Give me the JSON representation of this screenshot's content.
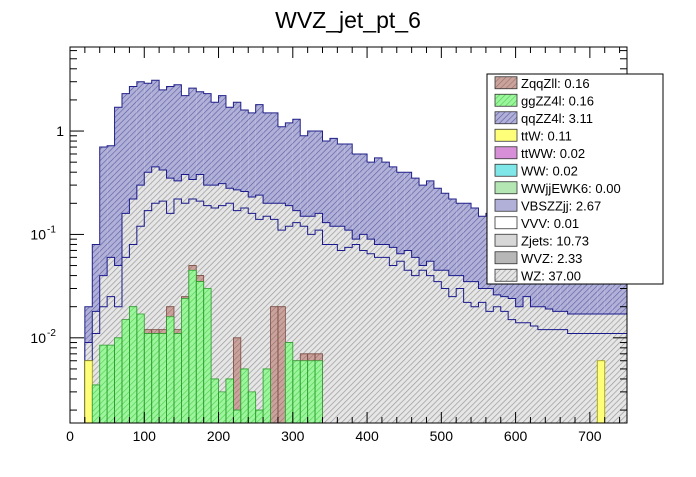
{
  "chart_data": {
    "type": "bar",
    "stacked": true,
    "title": "WVZ_jet_pt_6",
    "xlabel": "",
    "ylabel": "",
    "xlim": [
      0,
      750
    ],
    "ylim": [
      0.0015,
      6.5
    ],
    "yscale": "log",
    "bin_width": 10,
    "x_ticks": [
      0,
      100,
      200,
      300,
      400,
      500,
      600,
      700
    ],
    "y_ticks": [
      {
        "value": 0.01,
        "label": "10",
        "exp": "-2"
      },
      {
        "value": 0.1,
        "label": "10",
        "exp": "-1"
      },
      {
        "value": 1,
        "label": "1",
        "exp": ""
      }
    ],
    "grid": false,
    "legend_position": "top-right",
    "legend": [
      {
        "label": "ZqqZll: 0.16",
        "color": "#c49a94",
        "hatch": "diag"
      },
      {
        "label": "ggZZ4l: 0.16",
        "color": "#8fe98f",
        "hatch": "diag"
      },
      {
        "label": "qqZZ4l: 3.11",
        "color": "#9999cc",
        "hatch": "diag"
      },
      {
        "label": "ttW: 0.11",
        "color": "#ffff7a",
        "hatch": "none"
      },
      {
        "label": "ttWW: 0.02",
        "color": "#d78fd7",
        "hatch": "none"
      },
      {
        "label": "WW: 0.02",
        "color": "#7fe7e7",
        "hatch": "none"
      },
      {
        "label": "WWjjEWK6: 0.00",
        "color": "#b3e6b3",
        "hatch": "none"
      },
      {
        "label": "VBSZZjj: 2.67",
        "color": "#b0b0d8",
        "hatch": "none"
      },
      {
        "label": "VVV: 0.01",
        "color": "#ffffff",
        "hatch": "none"
      },
      {
        "label": "Zjets: 10.73",
        "color": "#d7d7d7",
        "hatch": "none"
      },
      {
        "label": "WVZ: 2.33",
        "color": "#b7b7b7",
        "hatch": "none"
      },
      {
        "label": "WZ: 37.00",
        "color": "#a9a9a9",
        "hatch": "diag"
      }
    ],
    "series": [
      {
        "name": "ggZZ4l+qqZZ4l (cumulative)",
        "x": [
          20,
          30,
          40,
          50,
          60,
          70,
          80,
          90,
          100,
          110,
          120,
          130,
          140,
          150,
          160,
          170,
          180,
          190,
          200,
          210,
          220,
          230,
          240,
          250,
          260,
          270,
          280,
          290,
          300,
          310,
          320,
          330,
          340,
          350,
          360,
          370,
          380,
          390,
          400,
          410,
          420,
          430,
          440,
          450,
          460,
          470,
          480,
          490,
          500,
          510,
          520,
          530,
          540,
          550,
          560,
          570,
          580,
          590,
          600,
          610,
          620,
          630,
          640,
          650,
          660,
          670,
          680,
          690,
          700,
          710,
          720,
          730,
          740
        ],
        "values": [
          0.006,
          0.011,
          0.02,
          0.025,
          0.02,
          0.06,
          0.08,
          0.12,
          0.17,
          0.2,
          0.21,
          0.16,
          0.22,
          0.2,
          0.22,
          0.21,
          0.19,
          0.18,
          0.19,
          0.2,
          0.17,
          0.18,
          0.16,
          0.14,
          0.15,
          0.14,
          0.11,
          0.12,
          0.13,
          0.12,
          0.1,
          0.11,
          0.08,
          0.08,
          0.07,
          0.075,
          0.08,
          0.07,
          0.065,
          0.06,
          0.06,
          0.05,
          0.055,
          0.045,
          0.04,
          0.045,
          0.04,
          0.035,
          0.03,
          0.025,
          0.03,
          0.022,
          0.02,
          0.022,
          0.018,
          0.02,
          0.018,
          0.015,
          0.014,
          0.014,
          0.013,
          0.012,
          0.012,
          0.012,
          0.012,
          0.011,
          0.011,
          0.011,
          0.011,
          0.011,
          0.011,
          0.011,
          0.011
        ]
      },
      {
        "name": "middle stack (cumulative)",
        "x": [
          20,
          30,
          40,
          50,
          60,
          70,
          80,
          90,
          100,
          110,
          120,
          130,
          140,
          150,
          160,
          170,
          180,
          190,
          200,
          210,
          220,
          230,
          240,
          250,
          260,
          270,
          280,
          290,
          300,
          310,
          320,
          330,
          340,
          350,
          360,
          370,
          380,
          390,
          400,
          410,
          420,
          430,
          440,
          450,
          460,
          470,
          480,
          490,
          500,
          510,
          520,
          530,
          540,
          550,
          560,
          570,
          580,
          590,
          600,
          610,
          620,
          630,
          640,
          650,
          660,
          670,
          680,
          690,
          700,
          710,
          720,
          730,
          740
        ],
        "values": [
          0.009,
          0.018,
          0.04,
          0.06,
          0.05,
          0.16,
          0.22,
          0.3,
          0.4,
          0.45,
          0.42,
          0.35,
          0.33,
          0.38,
          0.34,
          0.38,
          0.3,
          0.3,
          0.31,
          0.28,
          0.27,
          0.26,
          0.23,
          0.24,
          0.2,
          0.2,
          0.2,
          0.19,
          0.17,
          0.15,
          0.15,
          0.16,
          0.13,
          0.12,
          0.12,
          0.11,
          0.09,
          0.1,
          0.09,
          0.08,
          0.08,
          0.075,
          0.065,
          0.07,
          0.06,
          0.05,
          0.055,
          0.045,
          0.045,
          0.04,
          0.04,
          0.035,
          0.035,
          0.03,
          0.03,
          0.026,
          0.025,
          0.024,
          0.02,
          0.025,
          0.02,
          0.02,
          0.019,
          0.018,
          0.018,
          0.017,
          0.017,
          0.017,
          0.017,
          0.017,
          0.017,
          0.017,
          0.017
        ]
      },
      {
        "name": "Total stack",
        "x": [
          20,
          30,
          40,
          50,
          60,
          70,
          80,
          90,
          100,
          110,
          120,
          130,
          140,
          150,
          160,
          170,
          180,
          190,
          200,
          210,
          220,
          230,
          240,
          250,
          260,
          270,
          280,
          290,
          300,
          310,
          320,
          330,
          340,
          350,
          360,
          370,
          380,
          390,
          400,
          410,
          420,
          430,
          440,
          450,
          460,
          470,
          480,
          490,
          500,
          510,
          520,
          530,
          540,
          550,
          560,
          570,
          580,
          590,
          600,
          610,
          620,
          630,
          640,
          650,
          660,
          670,
          680,
          690,
          700,
          710,
          720,
          730,
          740
        ],
        "values": [
          0.02,
          0.08,
          0.7,
          0.72,
          1.7,
          2.3,
          2.7,
          3.0,
          2.9,
          3.1,
          2.5,
          2.7,
          2.8,
          2.2,
          2.6,
          2.4,
          2.3,
          1.9,
          2.2,
          1.7,
          1.9,
          1.6,
          1.5,
          1.8,
          1.5,
          1.5,
          1.1,
          1.2,
          1.3,
          0.9,
          1.0,
          1.0,
          0.8,
          0.85,
          0.75,
          0.75,
          0.6,
          0.6,
          0.5,
          0.55,
          0.5,
          0.45,
          0.4,
          0.4,
          0.35,
          0.3,
          0.33,
          0.28,
          0.25,
          0.22,
          0.2,
          0.2,
          0.18,
          0.15,
          0.16,
          0.14,
          0.12,
          0.1,
          0.07,
          0.07,
          0.07,
          0.06,
          0.065,
          0.05,
          0.05,
          0.05,
          0.05,
          0.05,
          0.05,
          0.05,
          0.05,
          0.05,
          0.05
        ]
      },
      {
        "name": "ZqqZll",
        "x": [
          100,
          110,
          120,
          130,
          140,
          150,
          160,
          170,
          210,
          220,
          270,
          280,
          300,
          310,
          320,
          330
        ],
        "values": [
          0.012,
          0.012,
          0.012,
          0.02,
          0.012,
          0.025,
          0.05,
          0.04,
          0.004,
          0.01,
          0.02,
          0.02,
          0.006,
          0.007,
          0.007,
          0.007
        ]
      },
      {
        "name": "ttW",
        "x": [
          20,
          710
        ],
        "values": [
          0.006,
          0.006
        ]
      },
      {
        "name": "ggZZ4l",
        "x": [
          30,
          40,
          50,
          60,
          70,
          80,
          90,
          100,
          110,
          120,
          130,
          140,
          150,
          160,
          170,
          180,
          190,
          200,
          210,
          220,
          230,
          240,
          250,
          260,
          290,
          300,
          310,
          320,
          330
        ],
        "values": [
          0.0035,
          0.0085,
          0.0085,
          0.01,
          0.015,
          0.02,
          0.017,
          0.011,
          0.011,
          0.011,
          0.016,
          0.011,
          0.024,
          0.045,
          0.035,
          0.03,
          0.004,
          0.003,
          0.004,
          0.002,
          0.005,
          0.003,
          0.002,
          0.005,
          0.009,
          0.006,
          0.006,
          0.006,
          0.006
        ]
      }
    ]
  }
}
